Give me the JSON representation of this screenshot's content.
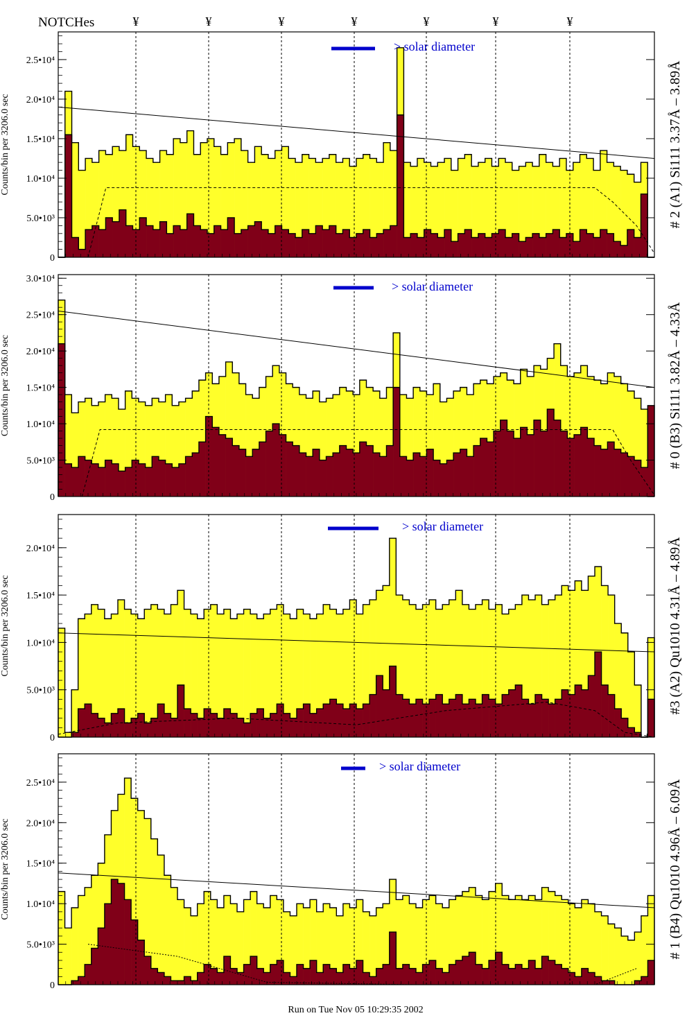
{
  "header": {
    "notches_label": "NOTCHes",
    "notch_symbol": "¥",
    "notch_positions": [
      196,
      301,
      406,
      511,
      615,
      715,
      822
    ]
  },
  "footer": {
    "run_text": "Run on Tue Nov 05 10:29:35 2002"
  },
  "colors": {
    "fill_yellow": "#ffff2a",
    "fill_darkred": "#800018",
    "legend_blue": "#0000cc",
    "text_black": "#000000"
  },
  "chart_data": [
    {
      "type": "area",
      "panel_label": "# 2 (A1) Si111  3.37Å – 3.89Å",
      "ylabel": "Counts/bin per   3206.0 sec",
      "yticks": [
        0,
        5000,
        10000,
        15000,
        20000,
        25000
      ],
      "ytick_labels": [
        "0",
        "5.0•10³",
        "1.0•10⁴",
        "1.5•10⁴",
        "2.0•10⁴",
        "2.5•10⁴"
      ],
      "ylim": [
        0,
        28500
      ],
      "legend": "> solar diameter",
      "series": [
        {
          "name": "",
          "style": "yellow-histogram",
          "values": [
            0,
            21000,
            14500,
            11000,
            12500,
            12000,
            13500,
            13000,
            14000,
            13500,
            15500,
            14000,
            13500,
            12500,
            12000,
            13500,
            13000,
            15000,
            14500,
            16000,
            13000,
            14500,
            15000,
            14000,
            13000,
            14500,
            15000,
            13500,
            12000,
            14000,
            13000,
            12500,
            13500,
            14000,
            12500,
            12000,
            13000,
            12500,
            12000,
            12500,
            13000,
            12000,
            12500,
            11500,
            12500,
            13000,
            12500,
            12000,
            14500,
            13500,
            26500,
            12000,
            11500,
            12500,
            12000,
            11500,
            12000,
            12500,
            11000,
            12500,
            13000,
            11500,
            12000,
            12500,
            11500,
            12500,
            12000,
            11000,
            11500,
            12000,
            11500,
            13000,
            12000,
            11500,
            12500,
            11000,
            12000,
            13000,
            12500,
            11000,
            13500,
            12000,
            11500,
            11000,
            10500,
            9500,
            12000,
            0
          ]
        },
        {
          "name": "",
          "style": "darkred-histogram",
          "values": [
            0,
            15500,
            2500,
            1000,
            3500,
            4000,
            3500,
            5000,
            4500,
            6000,
            4000,
            3500,
            5000,
            4000,
            3500,
            4500,
            3000,
            4000,
            3500,
            5500,
            4000,
            3500,
            3000,
            4000,
            3500,
            5000,
            3000,
            3500,
            4000,
            4500,
            3500,
            3000,
            4000,
            3500,
            3000,
            2500,
            3500,
            3000,
            4000,
            3500,
            4000,
            3000,
            3500,
            2500,
            3000,
            3500,
            2500,
            3000,
            3500,
            4000,
            18000,
            2500,
            3000,
            2500,
            3500,
            3000,
            2500,
            3500,
            2000,
            3000,
            3500,
            2500,
            3000,
            2500,
            3000,
            3500,
            2500,
            3000,
            2000,
            2500,
            3000,
            2500,
            3000,
            3500,
            2500,
            3000,
            2000,
            3500,
            3000,
            2500,
            3500,
            3000,
            2000,
            1500,
            3500,
            2500,
            8000,
            0
          ]
        },
        {
          "name": "",
          "style": "solid-line",
          "x": [
            0.0,
            1.0
          ],
          "values": [
            19000,
            12500
          ]
        },
        {
          "name": "",
          "style": "dashed-line",
          "x": [
            0.05,
            0.08,
            0.9,
            0.93,
            0.97,
            1.0
          ],
          "values": [
            0,
            8800,
            8800,
            7000,
            4000,
            500
          ]
        }
      ]
    },
    {
      "type": "area",
      "panel_label": "# 0 (B3) Si111  3.82Å – 4.33Å",
      "ylabel": "Counts/bin per   3206.0 sec",
      "yticks": [
        0,
        5000,
        10000,
        15000,
        20000,
        25000,
        30000
      ],
      "ytick_labels": [
        "0",
        "5.0•10³",
        "1.0•10⁴",
        "1.5•10⁴",
        "2.0•10⁴",
        "2.5•10⁴",
        "3.0•10⁴"
      ],
      "ylim": [
        0,
        30500
      ],
      "legend": "> solar diameter",
      "series": [
        {
          "name": "",
          "style": "yellow-histogram",
          "values": [
            27000,
            14000,
            11500,
            13000,
            13500,
            12500,
            13000,
            14000,
            13500,
            12000,
            14500,
            13500,
            13000,
            12500,
            13500,
            13000,
            14000,
            12500,
            13000,
            13500,
            14500,
            16000,
            17000,
            15500,
            16500,
            18500,
            17000,
            15500,
            14000,
            13500,
            15000,
            16500,
            18000,
            17000,
            15500,
            15000,
            14000,
            13500,
            14500,
            13000,
            13500,
            14000,
            15000,
            14500,
            14000,
            16000,
            15000,
            14500,
            13500,
            15000,
            22500,
            14000,
            13500,
            15000,
            14500,
            14000,
            15500,
            13000,
            13500,
            14500,
            15000,
            14000,
            15500,
            16000,
            15500,
            16500,
            17000,
            16000,
            15500,
            17500,
            16500,
            18000,
            17500,
            19000,
            21000,
            18000,
            16500,
            17000,
            18000,
            16500,
            16000,
            15500,
            17000,
            16500,
            15500,
            14500,
            13500,
            12000,
            0
          ]
        },
        {
          "name": "",
          "style": "darkred-histogram",
          "values": [
            21000,
            4500,
            4000,
            5500,
            5000,
            4500,
            4000,
            5000,
            4500,
            3500,
            4000,
            5000,
            4500,
            4000,
            5500,
            5000,
            4500,
            4000,
            4500,
            5500,
            6000,
            7500,
            11000,
            9500,
            8500,
            8000,
            7000,
            6500,
            5500,
            6500,
            7500,
            9000,
            10000,
            8500,
            7500,
            7000,
            6000,
            5500,
            6500,
            5000,
            5500,
            6000,
            7000,
            6500,
            6000,
            7500,
            7000,
            6000,
            5500,
            7000,
            15000,
            5500,
            5000,
            6000,
            5500,
            6500,
            5000,
            4500,
            5000,
            6000,
            6500,
            5500,
            7000,
            8000,
            7500,
            9000,
            10500,
            9000,
            8000,
            9500,
            8500,
            10500,
            9000,
            12000,
            10500,
            9000,
            8000,
            8500,
            9500,
            8000,
            7000,
            6500,
            7500,
            6500,
            6000,
            5500,
            5000,
            4000,
            12500
          ]
        },
        {
          "name": "",
          "style": "solid-line",
          "x": [
            0.0,
            1.0
          ],
          "values": [
            25500,
            15000
          ]
        },
        {
          "name": "",
          "style": "dashed-line",
          "x": [
            0.04,
            0.07,
            0.93,
            0.96,
            1.0
          ],
          "values": [
            0,
            9200,
            9200,
            5000,
            200
          ]
        }
      ]
    },
    {
      "type": "area",
      "panel_label": "#3 (A2) Qu1010  4.31Å – 4.89Å",
      "ylabel": "Counts/bin per   3206.0 sec",
      "yticks": [
        0,
        5000,
        10000,
        15000,
        20000
      ],
      "ytick_labels": [
        "0",
        "5.0•10³",
        "1.0•10⁴",
        "1.5•10⁴",
        "2.0•10⁴"
      ],
      "ylim": [
        0,
        23500
      ],
      "legend": "> solar diameter",
      "series": [
        {
          "name": "",
          "style": "yellow-histogram",
          "values": [
            11500,
            500,
            5000,
            12500,
            13000,
            14000,
            13500,
            12500,
            13000,
            14500,
            13500,
            13000,
            12500,
            13500,
            14000,
            13500,
            13000,
            14000,
            15500,
            13500,
            13000,
            12500,
            13500,
            14000,
            13000,
            13500,
            12500,
            13000,
            13500,
            13000,
            12500,
            13000,
            13500,
            14000,
            13000,
            12500,
            13500,
            13000,
            12500,
            13000,
            14000,
            13500,
            13000,
            13500,
            14500,
            13000,
            14000,
            14500,
            15500,
            16000,
            21000,
            15000,
            14500,
            14000,
            13500,
            14000,
            14500,
            13500,
            14000,
            14500,
            15500,
            14000,
            13500,
            14000,
            14500,
            13500,
            14000,
            13000,
            13500,
            14000,
            15000,
            14500,
            15000,
            14000,
            14500,
            15000,
            16000,
            15500,
            16500,
            15500,
            17000,
            18000,
            16000,
            15000,
            12000,
            11000,
            9000,
            5500,
            0,
            10500
          ]
        },
        {
          "name": "",
          "style": "darkred-histogram",
          "values": [
            0,
            0,
            500,
            3000,
            3500,
            2500,
            2000,
            1500,
            2500,
            3000,
            1500,
            2000,
            2500,
            1500,
            2000,
            3500,
            2500,
            2000,
            5500,
            3000,
            2500,
            2000,
            3000,
            2500,
            2000,
            3000,
            2500,
            2000,
            1500,
            2500,
            3000,
            2000,
            2500,
            3500,
            2500,
            2000,
            3000,
            3500,
            2500,
            3000,
            3500,
            4000,
            3500,
            3000,
            3500,
            3000,
            3500,
            4500,
            6500,
            5000,
            7500,
            4500,
            4000,
            3500,
            4000,
            3500,
            4000,
            4500,
            3500,
            4000,
            4500,
            3500,
            4000,
            3500,
            4500,
            4000,
            3500,
            4500,
            5000,
            5500,
            4000,
            3500,
            4500,
            4000,
            3500,
            4000,
            5000,
            4500,
            5500,
            5000,
            6500,
            9000,
            5500,
            4500,
            3000,
            2000,
            1000,
            500,
            0,
            4000
          ]
        },
        {
          "name": "",
          "style": "solid-line",
          "x": [
            0.0,
            1.0
          ],
          "values": [
            11000,
            9000
          ]
        },
        {
          "name": "",
          "style": "dashed-line",
          "x": [
            0.0,
            0.1,
            0.3,
            0.5,
            0.65,
            0.82,
            0.9,
            0.95,
            1.0
          ],
          "values": [
            300,
            1500,
            2000,
            1300,
            2800,
            3700,
            2800,
            500,
            0
          ]
        }
      ]
    },
    {
      "type": "area",
      "panel_label": "# 1 (B4) Qu1010 4.96Å – 6.09Å",
      "ylabel": "Counts/bin per   3206.0 sec",
      "yticks": [
        0,
        5000,
        10000,
        15000,
        20000,
        25000
      ],
      "ytick_labels": [
        "0",
        "5.0•10³",
        "1.0•10⁴",
        "1.5•10⁴",
        "2.0•10⁴",
        "2.5•10⁴"
      ],
      "ylim": [
        0,
        28500
      ],
      "legend": "> solar diameter",
      "series": [
        {
          "name": "",
          "style": "yellow-histogram",
          "values": [
            11500,
            7000,
            9500,
            11000,
            12000,
            13500,
            15000,
            18500,
            21500,
            23500,
            25500,
            23000,
            21500,
            20500,
            18000,
            16000,
            13500,
            12000,
            10500,
            9500,
            8500,
            10000,
            11500,
            10500,
            9500,
            11000,
            10000,
            9000,
            10500,
            11500,
            10000,
            9500,
            11000,
            10500,
            9000,
            8500,
            10000,
            9500,
            10500,
            9000,
            10000,
            9500,
            8500,
            10000,
            9500,
            10500,
            9000,
            8500,
            9500,
            10000,
            13000,
            10500,
            11000,
            10000,
            9500,
            10500,
            11000,
            10000,
            9500,
            10500,
            11000,
            11500,
            12000,
            11000,
            10500,
            11500,
            12500,
            11000,
            10500,
            11000,
            10500,
            11000,
            10500,
            12000,
            11500,
            11000,
            10500,
            10000,
            9500,
            10500,
            10000,
            9000,
            8500,
            7500,
            7000,
            6000,
            5500,
            6500,
            8500,
            11000
          ]
        },
        {
          "name": "",
          "style": "darkred-histogram",
          "values": [
            0,
            0,
            500,
            1000,
            2500,
            4500,
            7000,
            10000,
            13000,
            12500,
            10500,
            8000,
            5500,
            3500,
            2000,
            1500,
            1000,
            500,
            500,
            1000,
            500,
            1500,
            2500,
            2000,
            1500,
            3500,
            2000,
            1500,
            2500,
            3500,
            2000,
            1500,
            2500,
            3000,
            1500,
            1000,
            2500,
            2000,
            3000,
            1500,
            2500,
            2000,
            1500,
            2500,
            2000,
            3000,
            1500,
            1000,
            2000,
            2500,
            6500,
            2000,
            2500,
            2000,
            1500,
            2500,
            3000,
            2000,
            1500,
            2500,
            3000,
            3500,
            4000,
            2500,
            2000,
            3000,
            4000,
            2500,
            2000,
            2500,
            2000,
            3000,
            2000,
            3500,
            3000,
            2500,
            2000,
            1500,
            1000,
            2000,
            1500,
            1000,
            500,
            500,
            0,
            0,
            0,
            500,
            1000,
            3000
          ]
        },
        {
          "name": "",
          "style": "solid-line",
          "x": [
            0.0,
            1.0
          ],
          "values": [
            13800,
            9500
          ]
        },
        {
          "name": "",
          "style": "dotted-line",
          "x": [
            0.05,
            0.2,
            0.35,
            0.6,
            0.9,
            0.97
          ],
          "values": [
            5000,
            3500,
            300,
            0,
            0,
            2000
          ]
        }
      ]
    }
  ]
}
